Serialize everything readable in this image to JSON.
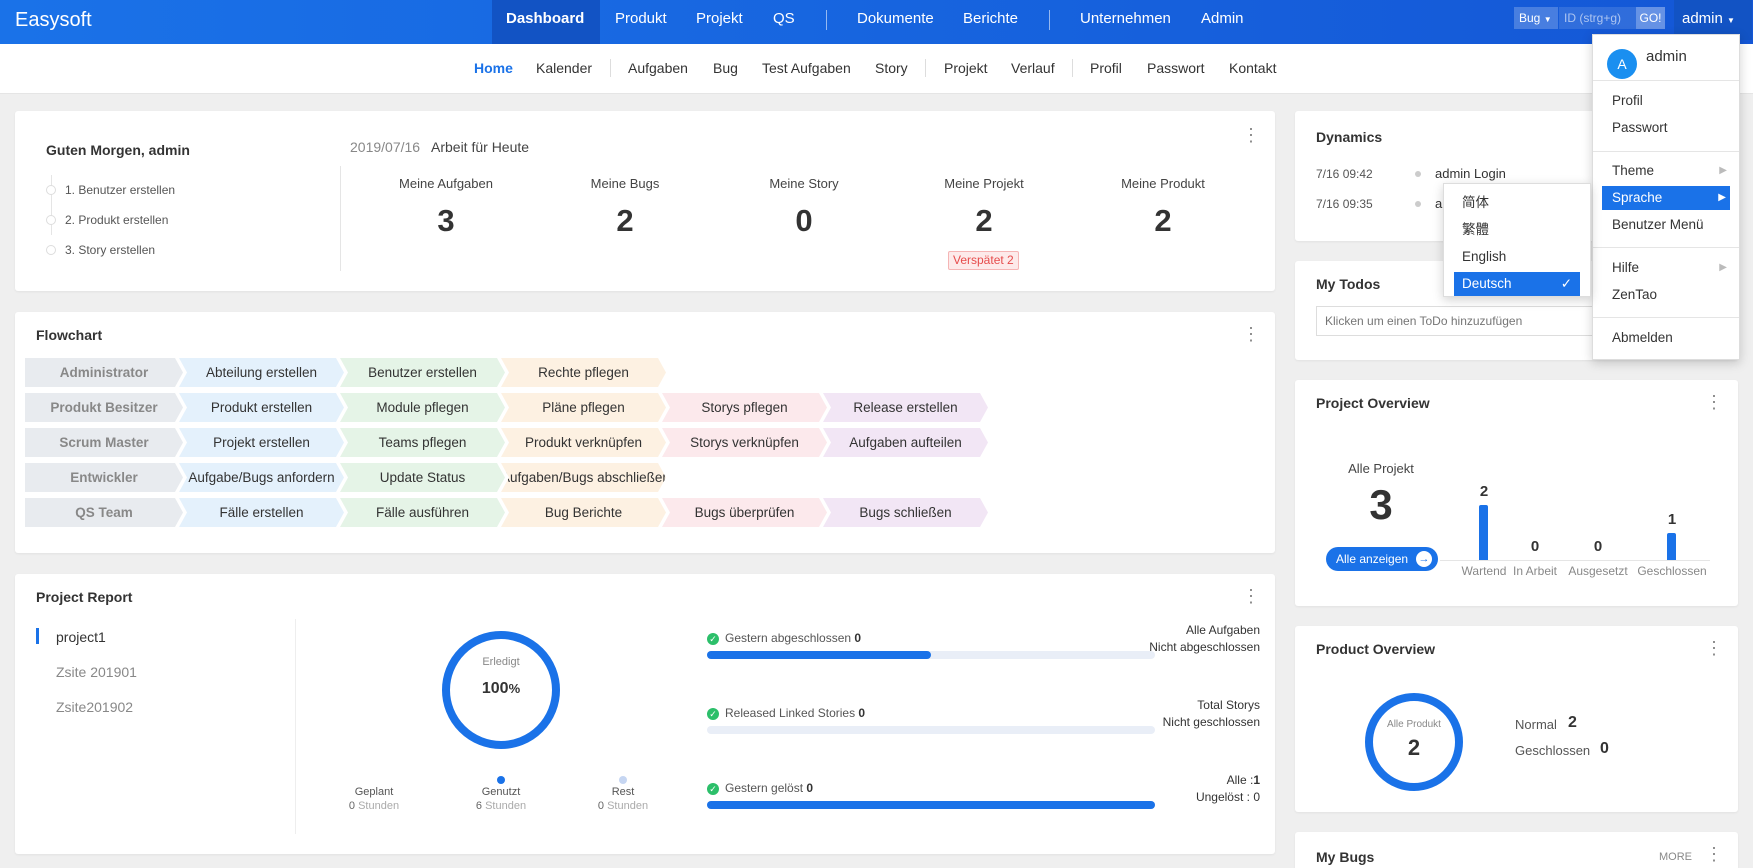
{
  "colors": {
    "primary": "#1a72e8",
    "header_dark": "#1253c4",
    "late": "#e64c4c"
  },
  "header": {
    "brand": "Easysoft",
    "nav": [
      "Dashboard",
      "Produkt",
      "Projekt",
      "QS",
      "Dokumente",
      "Berichte",
      "Unternehmen",
      "Admin"
    ],
    "search_type": "Bug",
    "search_placeholder": "ID (strg+g)",
    "go_label": "GO!",
    "user_label": "admin"
  },
  "subnav": [
    "Home",
    "Kalender",
    "Aufgaben",
    "Bug",
    "Test Aufgaben",
    "Story",
    "Projekt",
    "Verlauf",
    "Profil",
    "Passwort",
    "Kontakt"
  ],
  "welcome": {
    "greeting": "Guten Morgen, admin",
    "date": "2019/07/16",
    "today_label": "Arbeit für Heute",
    "steps": [
      "1. Benutzer erstellen",
      "2. Produkt erstellen",
      "3. Story erstellen"
    ],
    "stats": [
      {
        "label": "Meine Aufgaben",
        "value": "3"
      },
      {
        "label": "Meine Bugs",
        "value": "2"
      },
      {
        "label": "Meine Story",
        "value": "0"
      },
      {
        "label": "Meine Projekt",
        "value": "2"
      },
      {
        "label": "Meine Produkt",
        "value": "2"
      }
    ],
    "late_badge": "Verspätet 2"
  },
  "flowchart": {
    "title": "Flowchart",
    "rows": [
      {
        "role": "Administrator",
        "steps": [
          "Abteilung erstellen",
          "Benutzer erstellen",
          "Rechte pflegen"
        ]
      },
      {
        "role": "Produkt Besitzer",
        "steps": [
          "Produkt erstellen",
          "Module pflegen",
          "Pläne pflegen",
          "Storys pflegen",
          "Release erstellen"
        ]
      },
      {
        "role": "Scrum Master",
        "steps": [
          "Projekt erstellen",
          "Teams pflegen",
          "Produkt verknüpfen",
          "Storys verknüpfen",
          "Aufgaben aufteilen"
        ]
      },
      {
        "role": "Entwickler",
        "steps": [
          "Aufgabe/Bugs anfordern",
          "Update Status",
          "Aufgaben/Bugs abschließen"
        ]
      },
      {
        "role": "QS Team",
        "steps": [
          "Fälle erstellen",
          "Fälle ausführen",
          "Bug Berichte",
          "Bugs überprüfen",
          "Bugs schließen"
        ]
      }
    ]
  },
  "report": {
    "title": "Project Report",
    "projects": [
      "project1",
      "Zsite 201901",
      "Zsite201902"
    ],
    "donut_label": "Erledigt",
    "donut_value": "100",
    "donut_unit": "%",
    "donut_progress": 1.0,
    "hours": [
      {
        "label": "Geplant",
        "value": "0",
        "unit": "Stunden"
      },
      {
        "label": "Genutzt",
        "value": "6",
        "unit": "Stunden"
      },
      {
        "label": "Rest",
        "value": "0",
        "unit": "Stunden"
      }
    ],
    "metrics": [
      {
        "label": "Gestern abgeschlossen",
        "value": "0",
        "progress": 0.5,
        "r1": "Alle Aufgaben",
        "r1v": "",
        "r2": "Nicht abgeschlossen",
        "r2v": ""
      },
      {
        "label": "Released Linked Stories",
        "value": "0",
        "progress": 0,
        "r1": "Total Storys",
        "r1v": "",
        "r2": "Nicht geschlossen",
        "r2v": ""
      },
      {
        "label": "Gestern gelöst",
        "value": "0",
        "progress": 1.0,
        "r1": "Alle :",
        "r1v": "1",
        "r2": "Ungelöst :",
        "r2v": "0"
      }
    ]
  },
  "dynamics": {
    "title": "Dynamics",
    "items": [
      {
        "time": "7/16 09:42",
        "text": "admin Login"
      },
      {
        "time": "7/16 09:35",
        "text": "a"
      }
    ]
  },
  "todos": {
    "title": "My Todos",
    "placeholder": "Klicken um einen ToDo hinzuzufügen"
  },
  "project_overview": {
    "title": "Project Overview",
    "all_label": "Alle Projekt",
    "all_value": "3",
    "button": "Alle anzeigen",
    "chart_data": {
      "type": "bar",
      "categories": [
        "Wartend",
        "In Arbeit",
        "Ausgesetzt",
        "Geschlossen"
      ],
      "values": [
        2,
        0,
        0,
        1
      ]
    }
  },
  "product_overview": {
    "title": "Product Overview",
    "donut_label": "Alle Produkt",
    "donut_value": "2",
    "rows": [
      {
        "label": "Normal",
        "value": "2"
      },
      {
        "label": "Geschlossen",
        "value": "0"
      }
    ]
  },
  "bugs": {
    "title": "My Bugs",
    "more": "MORE"
  },
  "user_menu": {
    "avatar": "A",
    "name": "admin",
    "items": [
      "Profil",
      "Passwort",
      "Theme",
      "Sprache",
      "Benutzer Menü",
      "Hilfe",
      "ZenTao",
      "Abmelden"
    ],
    "languages": [
      "简体",
      "繁體",
      "English",
      "Deutsch"
    ],
    "selected_language": "Deutsch"
  }
}
